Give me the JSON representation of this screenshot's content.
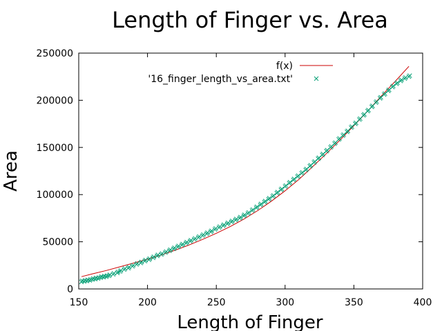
{
  "chart_data": {
    "type": "scatter",
    "title": "Length of Finger vs. Area",
    "xlabel": "Length of Finger",
    "ylabel": "Area",
    "xlim": [
      150,
      400
    ],
    "ylim": [
      0,
      250000
    ],
    "xticks": [
      150,
      200,
      250,
      300,
      350,
      400
    ],
    "yticks": [
      0,
      50000,
      100000,
      150000,
      200000,
      250000
    ],
    "grid": false,
    "legend_position": "top-right",
    "series": [
      {
        "name": "f(x)",
        "kind": "line",
        "color": "#cc0000",
        "x": [
          152,
          160,
          170,
          180,
          190,
          200,
          210,
          220,
          230,
          240,
          250,
          260,
          270,
          280,
          290,
          300,
          310,
          320,
          330,
          340,
          350,
          360,
          370,
          380,
          390
        ],
        "y": [
          13000,
          16000,
          19500,
          23500,
          27500,
          31500,
          36000,
          41000,
          46500,
          52500,
          59000,
          66000,
          74000,
          83000,
          93000,
          104000,
          116000,
          129500,
          143500,
          158000,
          173000,
          188500,
          204500,
          220000,
          236000
        ]
      },
      {
        "name": "'16_finger_length_vs_area.txt'",
        "kind": "points",
        "color": "#009e73",
        "x": [
          152,
          154,
          156,
          158,
          160,
          162,
          164,
          166,
          168,
          170,
          172,
          175,
          178,
          180,
          183,
          186,
          189,
          192,
          195,
          198,
          201,
          204,
          207,
          210,
          213,
          216,
          219,
          222,
          225,
          228,
          231,
          234,
          237,
          240,
          243,
          246,
          249,
          252,
          255,
          258,
          261,
          264,
          267,
          270,
          273,
          276,
          279,
          282,
          285,
          288,
          291,
          294,
          297,
          300,
          303,
          306,
          309,
          312,
          315,
          318,
          321,
          324,
          327,
          330,
          333,
          336,
          339,
          342,
          345,
          348,
          351,
          354,
          357,
          360,
          363,
          366,
          369,
          372,
          375,
          378,
          381,
          384,
          387,
          390
        ],
        "y": [
          7500,
          8000,
          8500,
          9000,
          10000,
          10500,
          11000,
          12000,
          12500,
          13000,
          14000,
          15500,
          17000,
          18500,
          20500,
          22000,
          24000,
          26000,
          27500,
          29500,
          31000,
          33000,
          35000,
          36500,
          38500,
          40500,
          42500,
          44500,
          46500,
          48500,
          50500,
          52500,
          54500,
          56500,
          58500,
          60500,
          63000,
          65000,
          67000,
          69000,
          71000,
          73000,
          75000,
          77500,
          80000,
          83000,
          86000,
          89000,
          92000,
          95000,
          98000,
          101500,
          105000,
          108500,
          112000,
          115500,
          119000,
          122500,
          126000,
          130000,
          134000,
          138000,
          142000,
          146000,
          150000,
          154000,
          158500,
          162500,
          166500,
          171000,
          175000,
          179500,
          184000,
          188500,
          193000,
          197500,
          202000,
          206000,
          210000,
          214000,
          217500,
          220500,
          223000,
          225000
        ]
      }
    ]
  }
}
